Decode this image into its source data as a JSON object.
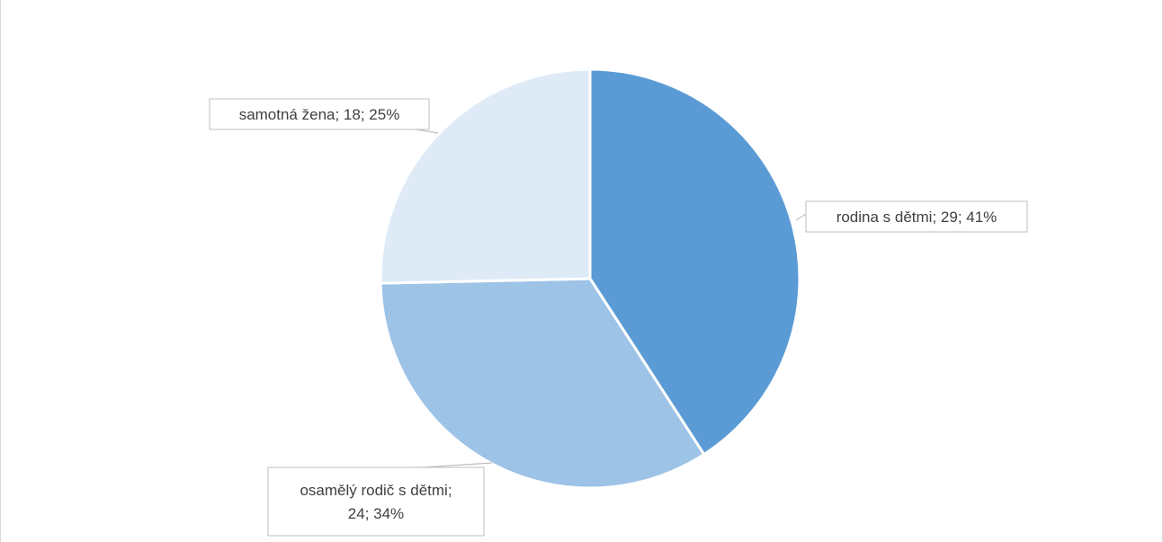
{
  "chart_data": {
    "type": "pie",
    "title": "",
    "start_angle_deg": 0,
    "direction": "clockwise",
    "slices": [
      {
        "label": "rodina s dětmi",
        "value": 29,
        "percent": "41%",
        "color": "#5b9bd5",
        "label_text": "rodina s dětmi; 29; 41%"
      },
      {
        "label": "osamělý rodič s dětmi",
        "value": 24,
        "percent": "34%",
        "color": "#9dc3e6",
        "label_text": [
          "osamělý rodič s dětmi;",
          "24; 34%"
        ]
      },
      {
        "label": "samotná žena",
        "value": 18,
        "percent": "25%",
        "color": "#deebf7",
        "label_text": "samotná žena; 18; 25%"
      }
    ]
  }
}
